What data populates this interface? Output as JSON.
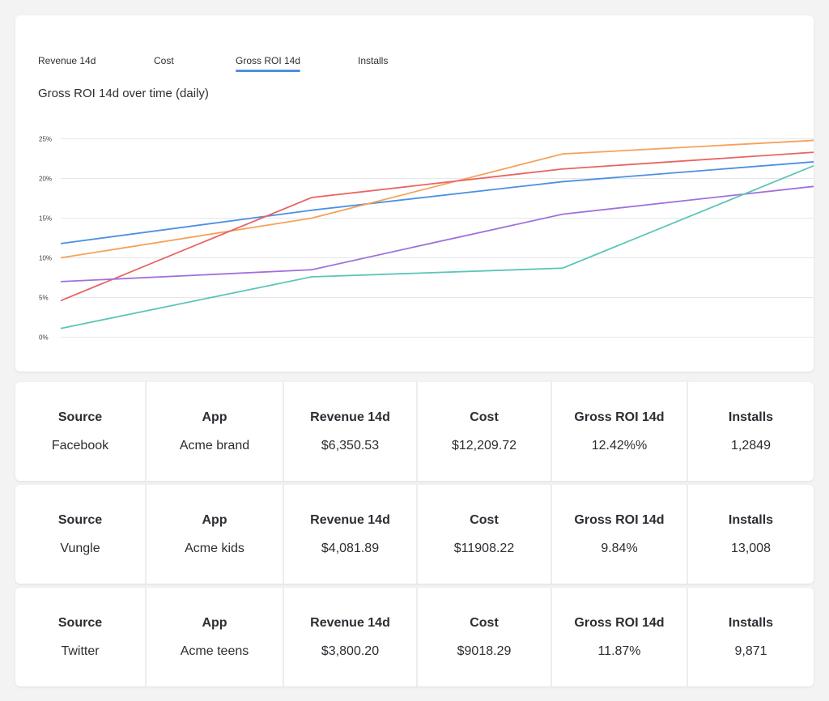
{
  "tabs": [
    {
      "label": "Revenue 14d",
      "active": false
    },
    {
      "label": "Cost",
      "active": false
    },
    {
      "label": "Gross ROI 14d",
      "active": true
    },
    {
      "label": "Installs",
      "active": false
    }
  ],
  "chart_data": {
    "type": "line",
    "title": "Gross ROI 14d over time (daily)",
    "xlabel": "",
    "ylabel": "",
    "ylim": [
      0,
      25
    ],
    "y_ticks": [
      "0%",
      "5%",
      "10%",
      "15%",
      "20%",
      "25%"
    ],
    "y_tick_values": [
      0,
      5,
      10,
      15,
      20,
      25
    ],
    "grid": true,
    "x": [
      0,
      1,
      2,
      3
    ],
    "series": [
      {
        "color": "#4c90e2",
        "values": [
          11.8,
          16.0,
          19.6,
          22.1
        ]
      },
      {
        "color": "#f4a25a",
        "values": [
          10.0,
          15.0,
          23.1,
          24.8
        ]
      },
      {
        "color": "#e86464",
        "values": [
          4.6,
          17.6,
          21.2,
          23.3
        ]
      },
      {
        "color": "#a070dc",
        "values": [
          7.0,
          8.5,
          15.5,
          19.0
        ]
      },
      {
        "color": "#5cc5b8",
        "values": [
          1.1,
          7.6,
          8.7,
          21.6
        ]
      }
    ]
  },
  "table": {
    "headers": [
      "Source",
      "App",
      "Revenue 14d",
      "Cost",
      "Gross ROI 14d",
      "Installs"
    ],
    "rows": [
      [
        "Facebook",
        "Acme brand",
        "$6,350.53",
        "$12,209.72",
        "12.42%%",
        "1,2849"
      ],
      [
        "Vungle",
        "Acme kids",
        "$4,081.89",
        "$11908.22",
        "9.84%",
        "13,008"
      ],
      [
        "Twitter",
        "Acme teens",
        "$3,800.20",
        "$9018.29",
        "11.87%",
        "9,871"
      ]
    ]
  }
}
